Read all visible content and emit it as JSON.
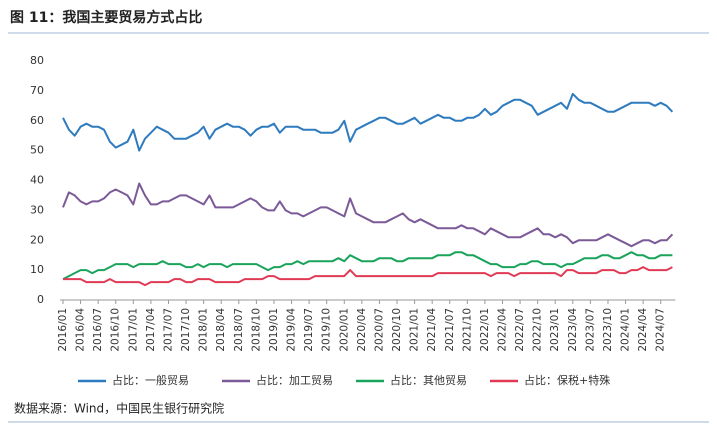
{
  "chart_data": {
    "type": "line",
    "title": "图 11：我国主要贸易方式占比",
    "source": "数据来源：Wind，中国民生银行研究院",
    "categories": [
      "2016/01",
      null,
      null,
      "2016/04",
      null,
      null,
      "2016/07",
      null,
      null,
      "2016/10",
      null,
      null,
      "2017/01",
      null,
      null,
      "2017/04",
      null,
      null,
      "2017/07",
      null,
      null,
      "2017/10",
      null,
      null,
      "2018/01",
      null,
      null,
      "2018/04",
      null,
      null,
      "2018/07",
      null,
      null,
      "2018/10",
      null,
      null,
      "2019/01",
      null,
      null,
      "2019/04",
      null,
      null,
      "2019/07",
      null,
      null,
      "2019/10",
      null,
      null,
      "2020/01",
      null,
      null,
      "2020/04",
      null,
      null,
      "2020/07",
      null,
      null,
      "2020/10",
      null,
      null,
      "2021/01",
      null,
      null,
      "2021/04",
      null,
      null,
      "2021/07",
      null,
      null,
      "2021/10",
      null,
      null,
      "2022/01",
      null,
      null,
      "2022/04",
      null,
      null,
      "2022/07",
      null,
      null,
      "2022/10",
      null,
      null,
      "2023/01",
      null,
      null,
      "2023/04",
      null,
      null,
      "2023/07",
      null,
      null,
      "2023/10",
      null,
      null,
      "2024/01",
      null,
      null,
      "2024/04",
      null,
      null,
      "2024/07",
      null,
      null
    ],
    "series": [
      {
        "name": "占比：一般贸易",
        "color": "#2e7bbf",
        "values": [
          61,
          57,
          55,
          58,
          59,
          58,
          58,
          57,
          53,
          51,
          52,
          53,
          57,
          50,
          54,
          56,
          58,
          57,
          56,
          54,
          54,
          54,
          55,
          56,
          58,
          54,
          57,
          58,
          59,
          58,
          58,
          57,
          55,
          57,
          58,
          58,
          59,
          56,
          58,
          58,
          58,
          57,
          57,
          57,
          56,
          56,
          56,
          57,
          60,
          53,
          57,
          58,
          59,
          60,
          61,
          61,
          60,
          59,
          59,
          60,
          61,
          59,
          60,
          61,
          62,
          61,
          61,
          60,
          60,
          61,
          61,
          62,
          64,
          62,
          63,
          65,
          66,
          67,
          67,
          66,
          65,
          62,
          63,
          64,
          65,
          66,
          64,
          69,
          67,
          66,
          66,
          65,
          64,
          63,
          63,
          64,
          65,
          66,
          66,
          66,
          66,
          65,
          66,
          65,
          63
        ]
      },
      {
        "name": "占比：加工贸易",
        "color": "#7b5a97",
        "values": [
          31,
          36,
          35,
          33,
          32,
          33,
          33,
          34,
          36,
          37,
          36,
          35,
          32,
          39,
          35,
          32,
          32,
          33,
          33,
          34,
          35,
          35,
          34,
          33,
          32,
          35,
          31,
          31,
          31,
          31,
          32,
          33,
          34,
          33,
          31,
          30,
          30,
          33,
          30,
          29,
          29,
          28,
          29,
          30,
          31,
          31,
          30,
          29,
          28,
          34,
          29,
          28,
          27,
          26,
          26,
          26,
          27,
          28,
          29,
          27,
          26,
          27,
          26,
          25,
          24,
          24,
          24,
          24,
          25,
          24,
          24,
          23,
          22,
          24,
          23,
          22,
          21,
          21,
          21,
          22,
          23,
          24,
          22,
          22,
          21,
          22,
          21,
          19,
          20,
          20,
          20,
          20,
          21,
          22,
          21,
          20,
          19,
          18,
          19,
          20,
          20,
          19,
          20,
          20,
          22
        ]
      },
      {
        "name": "占比：其他贸易",
        "color": "#1aa35a",
        "values": [
          7,
          8,
          9,
          10,
          10,
          9,
          10,
          10,
          11,
          12,
          12,
          12,
          11,
          12,
          12,
          12,
          12,
          13,
          12,
          12,
          12,
          11,
          11,
          12,
          11,
          12,
          12,
          12,
          11,
          12,
          12,
          12,
          12,
          12,
          11,
          10,
          11,
          11,
          12,
          12,
          13,
          12,
          13,
          13,
          13,
          13,
          13,
          14,
          13,
          15,
          14,
          13,
          13,
          13,
          14,
          14,
          14,
          13,
          13,
          14,
          14,
          14,
          14,
          14,
          15,
          15,
          15,
          16,
          16,
          15,
          15,
          14,
          13,
          12,
          12,
          11,
          11,
          11,
          12,
          12,
          13,
          13,
          12,
          12,
          12,
          11,
          12,
          12,
          13,
          14,
          14,
          14,
          15,
          15,
          14,
          14,
          15,
          16,
          15,
          15,
          14,
          14,
          15,
          15,
          15
        ]
      },
      {
        "name": "占比：保税+特殊",
        "color": "#e03a55",
        "values": [
          7,
          7,
          7,
          7,
          6,
          6,
          6,
          6,
          7,
          6,
          6,
          6,
          6,
          6,
          5,
          6,
          6,
          6,
          6,
          7,
          7,
          6,
          6,
          7,
          7,
          7,
          6,
          6,
          6,
          6,
          6,
          7,
          7,
          7,
          7,
          8,
          8,
          7,
          7,
          7,
          7,
          7,
          7,
          8,
          8,
          8,
          8,
          8,
          8,
          10,
          8,
          8,
          8,
          8,
          8,
          8,
          8,
          8,
          8,
          8,
          8,
          8,
          8,
          8,
          9,
          9,
          9,
          9,
          9,
          9,
          9,
          9,
          9,
          8,
          9,
          9,
          9,
          8,
          9,
          9,
          9,
          9,
          9,
          9,
          9,
          8,
          10,
          10,
          9,
          9,
          9,
          9,
          10,
          10,
          10,
          9,
          9,
          10,
          10,
          11,
          10,
          10,
          10,
          10,
          11
        ]
      }
    ],
    "ylim": [
      0,
      80
    ],
    "yticks": [
      0,
      10,
      20,
      30,
      40,
      50,
      60,
      70,
      80
    ]
  }
}
